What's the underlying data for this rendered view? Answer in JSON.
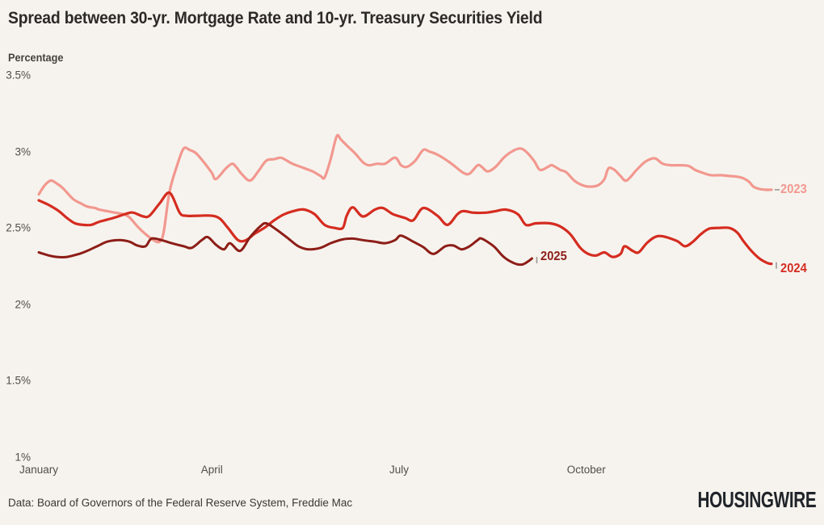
{
  "title": "Spread between 30-yr. Mortgage Rate and 10-yr. Treasury Securities Yield",
  "source": "Data: Board of Governors of the Federal Reserve System, Freddie Mac",
  "logo": "HOUSINGWIRE",
  "chart_data": {
    "type": "line",
    "title": "Spread between 30-yr. Mortgage Rate and 10-yr. Treasury Securities Yield",
    "xlabel": "",
    "ylabel": "Percentage",
    "ylim": [
      1,
      3.5
    ],
    "grid": false,
    "legend_position": "line-end-labels",
    "x_unit": "day-of-year",
    "y_ticks": [
      {
        "label": "3.5%",
        "value": 3.5
      },
      {
        "label": "3%",
        "value": 3.0
      },
      {
        "label": "2.5%",
        "value": 2.5
      },
      {
        "label": "2%",
        "value": 2.0
      },
      {
        "label": "1.5%",
        "value": 1.5
      },
      {
        "label": "1%",
        "value": 1.0
      }
    ],
    "x_ticks": [
      {
        "label": "January",
        "day": 0
      },
      {
        "label": "April",
        "day": 86
      },
      {
        "label": "July",
        "day": 179
      },
      {
        "label": "October",
        "day": 272
      }
    ],
    "series": [
      {
        "name": "2023",
        "color": "#f2988f",
        "points": [
          [
            0,
            2.72
          ],
          [
            3,
            2.78
          ],
          [
            6,
            2.81
          ],
          [
            9,
            2.79
          ],
          [
            12,
            2.76
          ],
          [
            17,
            2.69
          ],
          [
            21,
            2.66
          ],
          [
            24,
            2.64
          ],
          [
            28,
            2.63
          ],
          [
            30,
            2.62
          ],
          [
            34,
            2.61
          ],
          [
            38,
            2.6
          ],
          [
            42,
            2.59
          ],
          [
            45,
            2.57
          ],
          [
            49,
            2.51
          ],
          [
            53,
            2.46
          ],
          [
            57,
            2.42
          ],
          [
            60,
            2.41
          ],
          [
            62,
            2.47
          ],
          [
            65,
            2.74
          ],
          [
            69,
            2.92
          ],
          [
            72,
            3.02
          ],
          [
            75,
            3.01
          ],
          [
            78,
            2.99
          ],
          [
            82,
            2.93
          ],
          [
            86,
            2.86
          ],
          [
            88,
            2.82
          ],
          [
            93,
            2.89
          ],
          [
            96,
            2.92
          ],
          [
            98,
            2.9
          ],
          [
            101,
            2.85
          ],
          [
            105,
            2.81
          ],
          [
            109,
            2.87
          ],
          [
            113,
            2.94
          ],
          [
            117,
            2.95
          ],
          [
            120,
            2.96
          ],
          [
            122,
            2.95
          ],
          [
            126,
            2.92
          ],
          [
            130,
            2.9
          ],
          [
            136,
            2.87
          ],
          [
            140,
            2.84
          ],
          [
            142,
            2.83
          ],
          [
            145,
            2.95
          ],
          [
            148,
            3.1
          ],
          [
            150,
            3.08
          ],
          [
            153,
            3.04
          ],
          [
            157,
            2.99
          ],
          [
            161,
            2.93
          ],
          [
            164,
            2.91
          ],
          [
            168,
            2.92
          ],
          [
            172,
            2.92
          ],
          [
            177,
            2.96
          ],
          [
            180,
            2.91
          ],
          [
            183,
            2.9
          ],
          [
            187,
            2.94
          ],
          [
            191,
            3.01
          ],
          [
            194,
            3.0
          ],
          [
            198,
            2.98
          ],
          [
            203,
            2.94
          ],
          [
            207,
            2.9
          ],
          [
            211,
            2.86
          ],
          [
            214,
            2.855
          ],
          [
            218,
            2.91
          ],
          [
            220,
            2.9
          ],
          [
            223,
            2.87
          ],
          [
            227,
            2.9
          ],
          [
            231,
            2.96
          ],
          [
            235,
            3.0
          ],
          [
            239,
            3.02
          ],
          [
            242,
            3.0
          ],
          [
            246,
            2.94
          ],
          [
            249,
            2.88
          ],
          [
            253,
            2.9
          ],
          [
            255,
            2.91
          ],
          [
            259,
            2.88
          ],
          [
            262,
            2.865
          ],
          [
            266,
            2.81
          ],
          [
            270,
            2.78
          ],
          [
            274,
            2.77
          ],
          [
            278,
            2.78
          ],
          [
            281,
            2.82
          ],
          [
            283,
            2.89
          ],
          [
            286,
            2.88
          ],
          [
            289,
            2.84
          ],
          [
            292,
            2.81
          ],
          [
            297,
            2.88
          ],
          [
            301,
            2.93
          ],
          [
            305,
            2.955
          ],
          [
            307,
            2.95
          ],
          [
            310,
            2.92
          ],
          [
            314,
            2.91
          ],
          [
            319,
            2.91
          ],
          [
            323,
            2.905
          ],
          [
            326,
            2.88
          ],
          [
            330,
            2.86
          ],
          [
            334,
            2.845
          ],
          [
            339,
            2.845
          ],
          [
            343,
            2.84
          ],
          [
            347,
            2.835
          ],
          [
            350,
            2.825
          ],
          [
            353,
            2.8
          ],
          [
            355,
            2.77
          ],
          [
            358,
            2.755
          ],
          [
            361,
            2.75
          ],
          [
            364,
            2.75
          ]
        ]
      },
      {
        "name": "2024",
        "color": "#d52c20",
        "points": [
          [
            0,
            2.68
          ],
          [
            5,
            2.65
          ],
          [
            10,
            2.61
          ],
          [
            14,
            2.565
          ],
          [
            18,
            2.53
          ],
          [
            22,
            2.52
          ],
          [
            26,
            2.52
          ],
          [
            30,
            2.54
          ],
          [
            37,
            2.565
          ],
          [
            44,
            2.595
          ],
          [
            47,
            2.6
          ],
          [
            52,
            2.575
          ],
          [
            55,
            2.58
          ],
          [
            60,
            2.66
          ],
          [
            65,
            2.73
          ],
          [
            70,
            2.6
          ],
          [
            73,
            2.58
          ],
          [
            79,
            2.58
          ],
          [
            86,
            2.58
          ],
          [
            90,
            2.56
          ],
          [
            94,
            2.5
          ],
          [
            99,
            2.42
          ],
          [
            103,
            2.42
          ],
          [
            107,
            2.46
          ],
          [
            112,
            2.5
          ],
          [
            117,
            2.55
          ],
          [
            122,
            2.59
          ],
          [
            128,
            2.615
          ],
          [
            132,
            2.62
          ],
          [
            137,
            2.59
          ],
          [
            142,
            2.52
          ],
          [
            147,
            2.5
          ],
          [
            151,
            2.5
          ],
          [
            153,
            2.58
          ],
          [
            156,
            2.635
          ],
          [
            161,
            2.575
          ],
          [
            167,
            2.62
          ],
          [
            171,
            2.63
          ],
          [
            176,
            2.59
          ],
          [
            182,
            2.565
          ],
          [
            186,
            2.55
          ],
          [
            191,
            2.63
          ],
          [
            198,
            2.58
          ],
          [
            203,
            2.52
          ],
          [
            208,
            2.59
          ],
          [
            211,
            2.61
          ],
          [
            216,
            2.6
          ],
          [
            222,
            2.6
          ],
          [
            227,
            2.61
          ],
          [
            232,
            2.62
          ],
          [
            238,
            2.59
          ],
          [
            242,
            2.52
          ],
          [
            247,
            2.53
          ],
          [
            254,
            2.53
          ],
          [
            259,
            2.51
          ],
          [
            264,
            2.46
          ],
          [
            269,
            2.37
          ],
          [
            273,
            2.33
          ],
          [
            277,
            2.32
          ],
          [
            281,
            2.34
          ],
          [
            285,
            2.31
          ],
          [
            289,
            2.33
          ],
          [
            291,
            2.38
          ],
          [
            295,
            2.35
          ],
          [
            298,
            2.34
          ],
          [
            302,
            2.4
          ],
          [
            306,
            2.44
          ],
          [
            310,
            2.445
          ],
          [
            317,
            2.415
          ],
          [
            321,
            2.38
          ],
          [
            325,
            2.41
          ],
          [
            329,
            2.46
          ],
          [
            333,
            2.495
          ],
          [
            338,
            2.5
          ],
          [
            343,
            2.5
          ],
          [
            347,
            2.47
          ],
          [
            350,
            2.415
          ],
          [
            354,
            2.35
          ],
          [
            358,
            2.3
          ],
          [
            362,
            2.27
          ],
          [
            364,
            2.265
          ]
        ]
      },
      {
        "name": "2025",
        "color": "#8d1d17",
        "points": [
          [
            0,
            2.34
          ],
          [
            5,
            2.32
          ],
          [
            9,
            2.31
          ],
          [
            14,
            2.31
          ],
          [
            20,
            2.33
          ],
          [
            24,
            2.35
          ],
          [
            29,
            2.38
          ],
          [
            34,
            2.41
          ],
          [
            40,
            2.42
          ],
          [
            45,
            2.41
          ],
          [
            49,
            2.385
          ],
          [
            53,
            2.38
          ],
          [
            56,
            2.43
          ],
          [
            61,
            2.42
          ],
          [
            66,
            2.4
          ],
          [
            72,
            2.38
          ],
          [
            76,
            2.37
          ],
          [
            81,
            2.42
          ],
          [
            84,
            2.44
          ],
          [
            88,
            2.39
          ],
          [
            92,
            2.36
          ],
          [
            95,
            2.4
          ],
          [
            100,
            2.35
          ],
          [
            105,
            2.44
          ],
          [
            110,
            2.51
          ],
          [
            113,
            2.53
          ],
          [
            118,
            2.49
          ],
          [
            124,
            2.43
          ],
          [
            129,
            2.38
          ],
          [
            134,
            2.36
          ],
          [
            140,
            2.37
          ],
          [
            145,
            2.4
          ],
          [
            151,
            2.425
          ],
          [
            156,
            2.43
          ],
          [
            161,
            2.42
          ],
          [
            167,
            2.41
          ],
          [
            172,
            2.4
          ],
          [
            177,
            2.42
          ],
          [
            180,
            2.45
          ],
          [
            186,
            2.41
          ],
          [
            191,
            2.375
          ],
          [
            196,
            2.33
          ],
          [
            202,
            2.38
          ],
          [
            206,
            2.385
          ],
          [
            210,
            2.36
          ],
          [
            214,
            2.38
          ],
          [
            218,
            2.42
          ],
          [
            220,
            2.43
          ],
          [
            226,
            2.38
          ],
          [
            231,
            2.31
          ],
          [
            236,
            2.27
          ],
          [
            240,
            2.26
          ],
          [
            243,
            2.28
          ],
          [
            245,
            2.3
          ]
        ]
      }
    ]
  }
}
